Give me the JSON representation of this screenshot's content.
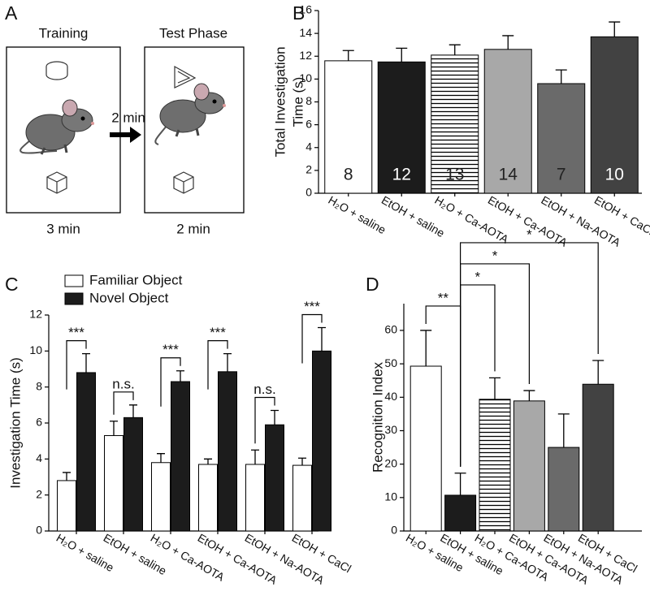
{
  "diagram": {
    "label": "A",
    "left_title": "Training",
    "right_title": "Test Phase",
    "arrow_label": "2 min",
    "left_duration": "3 min",
    "right_duration": "2 min"
  },
  "chart_data": [
    {
      "type": "bar",
      "panel": "B",
      "ylabel": [
        "Total Investigation",
        "Time (s)"
      ],
      "categories": [
        "H₂O + saline",
        "EtOH + saline",
        "H₂O + Ca-AOTA",
        "EtOH + Ca-AOTA",
        "EtOH + Na-AOTA",
        "EtOH + CaCl"
      ],
      "values": [
        11.6,
        11.5,
        12.1,
        12.6,
        9.6,
        13.7
      ],
      "errors": [
        0.9,
        1.2,
        0.9,
        1.2,
        1.2,
        1.3
      ],
      "colors": [
        "#ffffff",
        "#1c1c1c",
        "#ffffff",
        "#a8a8a8",
        "#6a6a6a",
        "#424242"
      ],
      "hatch": [
        false,
        false,
        true,
        false,
        false,
        false
      ],
      "n": [
        8,
        12,
        13,
        14,
        7,
        10
      ],
      "ylim": [
        0,
        16
      ],
      "yticks": [
        0,
        2,
        4,
        6,
        8,
        10,
        12,
        14,
        16
      ]
    },
    {
      "type": "bar",
      "panel": "C",
      "ylabel": "Investigation Time (s)",
      "categories": [
        "H₂O + saline",
        "EtOH + saline",
        "H₂O + Ca-AOTA",
        "EtOH + Ca-AOTA",
        "EtOH + Na-AOTA",
        "EtOH + CaCl"
      ],
      "series": [
        {
          "name": "Familiar Object",
          "color": "#ffffff",
          "values": [
            2.8,
            5.3,
            3.8,
            3.7,
            3.7,
            3.65
          ],
          "errors": [
            0.45,
            0.8,
            0.5,
            0.3,
            0.8,
            0.4
          ]
        },
        {
          "name": "Novel Object",
          "color": "#1c1c1c",
          "values": [
            8.8,
            6.3,
            8.3,
            8.85,
            5.9,
            10.0
          ],
          "errors": [
            1.05,
            0.7,
            0.6,
            1.0,
            0.8,
            1.3
          ]
        }
      ],
      "significance": [
        "***",
        "n.s.",
        "***",
        "***",
        "n.s.",
        "***"
      ],
      "legend": "top-left",
      "ylim": [
        0,
        12
      ],
      "yticks": [
        0,
        2,
        4,
        6,
        8,
        10,
        12
      ]
    },
    {
      "type": "bar",
      "panel": "D",
      "ylabel": "Recognition Index",
      "categories": [
        "H₂O + saline",
        "EtOH + saline",
        "H₂O + Ca-AOTA",
        "EtOH + Ca-AOTA",
        "EtOH + Na-AOTA",
        "EtOH + CaCl"
      ],
      "values": [
        49.3,
        10.7,
        39.4,
        38.9,
        25,
        43.9
      ],
      "errors": [
        10.7,
        6.6,
        6.4,
        3.1,
        10,
        7.1
      ],
      "colors": [
        "#ffffff",
        "#1c1c1c",
        "#ffffff",
        "#a8a8a8",
        "#6a6a6a",
        "#424242"
      ],
      "hatch": [
        false,
        false,
        true,
        false,
        false,
        false
      ],
      "comparisons": [
        {
          "from": 0,
          "to": 1,
          "label": "**"
        },
        {
          "from": 1,
          "to": 2,
          "label": "*"
        },
        {
          "from": 1,
          "to": 3,
          "label": "*"
        },
        {
          "from": 1,
          "to": 5,
          "label": "*"
        }
      ],
      "ylim": [
        0,
        68
      ],
      "yticks": [
        0,
        10,
        20,
        30,
        40,
        50,
        60
      ]
    }
  ]
}
